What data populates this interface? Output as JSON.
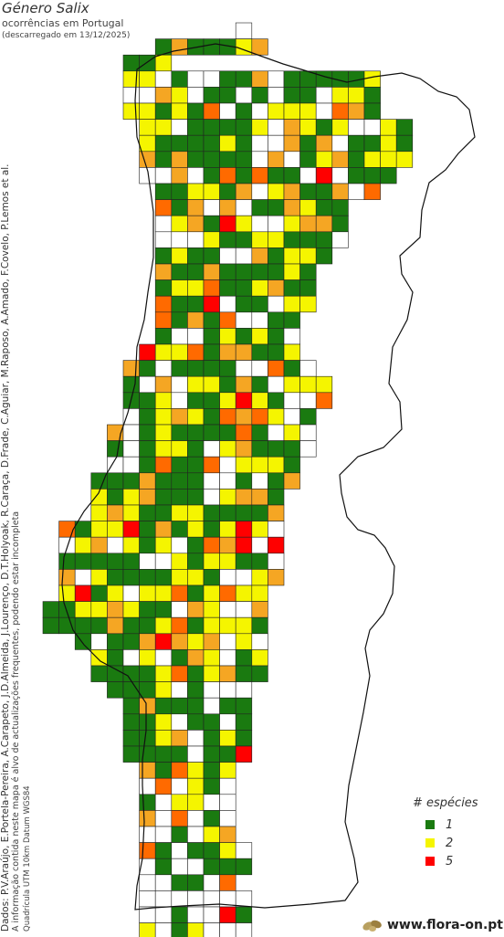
{
  "header": {
    "title": "Género Salix",
    "subtitle": "ocorrências em Portugal",
    "download_note": "(descarregado em 13/12/2025)"
  },
  "credits": {
    "data_sources": "Dados: P.V.Araújo, E.Portela-Pereira, A.Carapeto, J.D.Almeida, J.Lourenço, D.T.Holyoak, R.Caraça, D.Frade, C.Aguiar, M.Raposo, A.Amado, F.Covelo, P.Lemos et al.",
    "update_note": "A informação contida neste mapa é alvo de actualizações frequentes, podendo estar incompleta",
    "grid_note": "Quadrícula UTM 10km Datum WGS84"
  },
  "legend": {
    "title": "# espécies",
    "items": [
      {
        "label": "1",
        "color": "#1a7a10"
      },
      {
        "label": "2",
        "color": "#f5f500"
      },
      {
        "label": "5",
        "color": "#ff0000"
      }
    ]
  },
  "colors": {
    "1": "#1a7a10",
    "2": "#f5f500",
    "3": "#f5a623",
    "4": "#ff6a00",
    "5": "#ff0000",
    "grid": "#222222",
    "empty": "#ffffff"
  },
  "brand": {
    "icon": "seed-pod-icon",
    "text": "www.flora-on.pt"
  }
}
